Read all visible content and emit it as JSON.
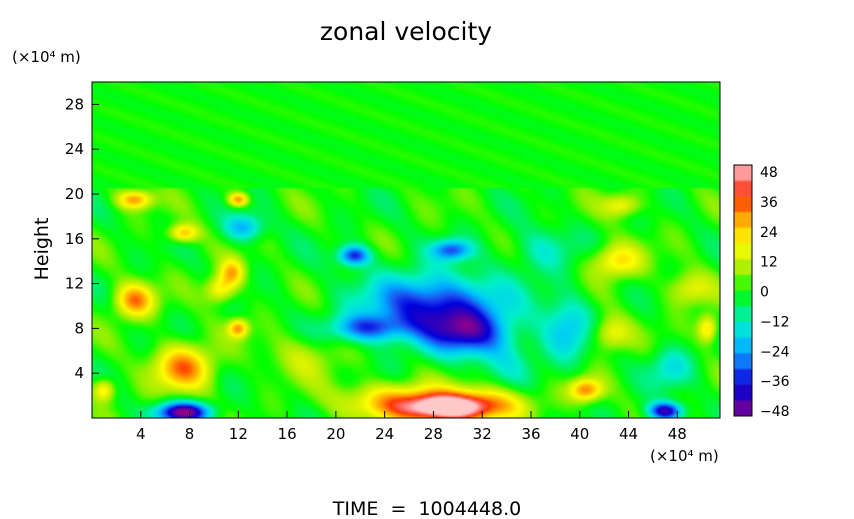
{
  "chart_data": {
    "type": "heatmap",
    "title": "zonal velocity",
    "ylabel": "Height",
    "y_unit": "(×10⁴ m)",
    "x_unit": "(×10⁴ m)",
    "footer": "TIME  =  1004448.0",
    "xlim": [
      0,
      51.5
    ],
    "ylim": [
      0,
      30
    ],
    "x_ticks": [
      "4",
      "8",
      "12",
      "16",
      "20",
      "24",
      "28",
      "32",
      "36",
      "40",
      "44",
      "48"
    ],
    "y_ticks": [
      "4",
      "8",
      "12",
      "16",
      "20",
      "24",
      "28"
    ],
    "colorbar": {
      "range": [
        -48,
        48
      ],
      "labels": [
        "48",
        "36",
        "24",
        "12",
        "0",
        "−12",
        "−24",
        "−36",
        "−48"
      ],
      "stops": [
        {
          "v": -48,
          "color": "#8c008c"
        },
        {
          "v": -42,
          "color": "#3a00b4"
        },
        {
          "v": -36,
          "color": "#0000dc"
        },
        {
          "v": -30,
          "color": "#1e50f0"
        },
        {
          "v": -24,
          "color": "#00a0ff"
        },
        {
          "v": -18,
          "color": "#00d2f0"
        },
        {
          "v": -12,
          "color": "#00f0c8"
        },
        {
          "v": -6,
          "color": "#00f064"
        },
        {
          "v": 0,
          "color": "#00ff00"
        },
        {
          "v": 6,
          "color": "#8cf000"
        },
        {
          "v": 12,
          "color": "#d2f000"
        },
        {
          "v": 18,
          "color": "#ffff00"
        },
        {
          "v": 24,
          "color": "#ffc800"
        },
        {
          "v": 30,
          "color": "#ff8c00"
        },
        {
          "v": 36,
          "color": "#ff3200"
        },
        {
          "v": 42,
          "color": "#ff6e6e"
        },
        {
          "v": 48,
          "color": "#ffc8c8"
        }
      ]
    },
    "upper_layer": {
      "y_min": 20.5,
      "value": 0
    },
    "features": [
      {
        "x": 29,
        "y": 0.8,
        "v": 46,
        "sx": 3.5,
        "sy": 1.2
      },
      {
        "x": 25,
        "y": 1.5,
        "v": 25,
        "sx": 4.5,
        "sy": 1.6
      },
      {
        "x": 32,
        "y": 1.3,
        "v": 22,
        "sx": 4.0,
        "sy": 1.4
      },
      {
        "x": 7.5,
        "y": 0.5,
        "v": -48,
        "sx": 2.2,
        "sy": 0.9
      },
      {
        "x": 47,
        "y": 0.6,
        "v": -42,
        "sx": 1.4,
        "sy": 0.8
      },
      {
        "x": 7.5,
        "y": 4.5,
        "v": 30,
        "sx": 2.4,
        "sy": 2.0
      },
      {
        "x": 3.5,
        "y": 10.5,
        "v": 30,
        "sx": 1.6,
        "sy": 1.5
      },
      {
        "x": 10.5,
        "y": 11.5,
        "v": 22,
        "sx": 1.2,
        "sy": 1.2
      },
      {
        "x": 11.5,
        "y": 13.0,
        "v": 24,
        "sx": 1.0,
        "sy": 1.2
      },
      {
        "x": 12,
        "y": 8.0,
        "v": 28,
        "sx": 0.8,
        "sy": 0.8
      },
      {
        "x": 3.5,
        "y": 19.5,
        "v": 28,
        "sx": 1.4,
        "sy": 0.8
      },
      {
        "x": 7.5,
        "y": 16.5,
        "v": 26,
        "sx": 1.2,
        "sy": 0.8
      },
      {
        "x": 12,
        "y": 19.5,
        "v": 30,
        "sx": 0.8,
        "sy": 0.6
      },
      {
        "x": 40.5,
        "y": 2.5,
        "v": 30,
        "sx": 1.3,
        "sy": 1.0
      },
      {
        "x": 42.5,
        "y": 7.5,
        "v": 18,
        "sx": 1.6,
        "sy": 1.5
      },
      {
        "x": 43,
        "y": 14.0,
        "v": 22,
        "sx": 2.0,
        "sy": 1.5
      },
      {
        "x": 49,
        "y": 11.5,
        "v": 16,
        "sx": 1.8,
        "sy": 1.5
      },
      {
        "x": 43.5,
        "y": 19.0,
        "v": 18,
        "sx": 1.5,
        "sy": 1.0
      },
      {
        "x": 50.5,
        "y": 8.0,
        "v": 24,
        "sx": 0.8,
        "sy": 1.2
      },
      {
        "x": 1.0,
        "y": 2.5,
        "v": 22,
        "sx": 0.9,
        "sy": 1.0
      },
      {
        "x": 28,
        "y": 10.0,
        "v": -36,
        "sx": 5.5,
        "sy": 2.8
      },
      {
        "x": 31,
        "y": 7.5,
        "v": -30,
        "sx": 3.5,
        "sy": 2.0
      },
      {
        "x": 22.5,
        "y": 8.0,
        "v": -26,
        "sx": 3.0,
        "sy": 1.2
      },
      {
        "x": 21.5,
        "y": 14.5,
        "v": -34,
        "sx": 1.3,
        "sy": 0.9
      },
      {
        "x": 29.5,
        "y": 15.0,
        "v": -28,
        "sx": 1.6,
        "sy": 0.9
      },
      {
        "x": 12.5,
        "y": 17.0,
        "v": -22,
        "sx": 1.6,
        "sy": 1.2
      },
      {
        "x": 39,
        "y": 8.0,
        "v": -18,
        "sx": 2.0,
        "sy": 3.0
      },
      {
        "x": 37,
        "y": 15.0,
        "v": -12,
        "sx": 2.5,
        "sy": 2.0
      },
      {
        "x": 47.5,
        "y": 4.5,
        "v": -14,
        "sx": 1.8,
        "sy": 1.8
      },
      {
        "x": 17.5,
        "y": 5.5,
        "v": 10,
        "sx": 3.0,
        "sy": 2.0
      },
      {
        "x": 34,
        "y": 5.0,
        "v": -8,
        "sx": 2.5,
        "sy": 2.0
      }
    ]
  }
}
